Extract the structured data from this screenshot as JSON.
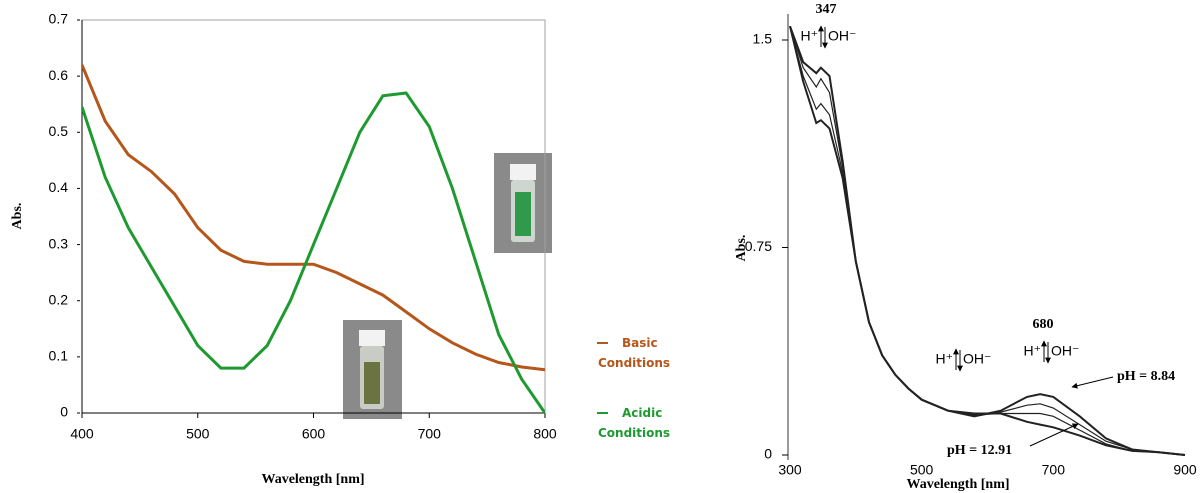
{
  "chart_data": [
    {
      "type": "line",
      "x_label": "Wavelength [nm]",
      "y_label": "Abs.",
      "x": [
        400,
        420,
        440,
        460,
        480,
        500,
        520,
        540,
        560,
        580,
        600,
        620,
        640,
        660,
        680,
        700,
        720,
        740,
        760,
        780,
        800
      ],
      "series": [
        {
          "name": "Basic Conditions",
          "color": "#b5561a",
          "values": [
            0.62,
            0.52,
            0.46,
            0.43,
            0.39,
            0.33,
            0.29,
            0.27,
            0.265,
            0.265,
            0.265,
            0.25,
            0.23,
            0.21,
            0.18,
            0.15,
            0.125,
            0.105,
            0.09,
            0.082,
            0.077
          ]
        },
        {
          "name": "Acidic Conditions",
          "color": "#1e9a30",
          "values": [
            0.545,
            0.42,
            0.33,
            0.26,
            0.19,
            0.12,
            0.08,
            0.08,
            0.12,
            0.2,
            0.3,
            0.4,
            0.5,
            0.565,
            0.57,
            0.51,
            0.4,
            0.27,
            0.14,
            0.06,
            0.0
          ]
        }
      ],
      "xlim": [
        400,
        800
      ],
      "xticks": [
        400,
        500,
        600,
        700,
        800
      ],
      "ylim": [
        0,
        0.7
      ],
      "yticks": [
        0,
        0.1,
        0.2,
        0.3,
        0.4,
        0.5,
        0.6,
        0.7
      ]
    },
    {
      "type": "line",
      "x_label": "Wavelength [nm]",
      "y_label": "Abs.",
      "x": [
        300,
        320,
        340,
        347,
        360,
        380,
        400,
        420,
        440,
        460,
        480,
        500,
        540,
        580,
        620,
        660,
        680,
        700,
        740,
        780,
        820,
        860,
        900
      ],
      "series": [
        {
          "color": "#222222",
          "values": [
            1.55,
            1.35,
            1.2,
            1.21,
            1.18,
            1.0,
            0.7,
            0.48,
            0.36,
            0.29,
            0.24,
            0.2,
            0.16,
            0.14,
            0.16,
            0.21,
            0.22,
            0.21,
            0.14,
            0.06,
            0.02,
            0.01,
            0.0
          ]
        },
        {
          "color": "#222222",
          "values": [
            1.55,
            1.37,
            1.25,
            1.27,
            1.23,
            1.02,
            0.7,
            0.48,
            0.36,
            0.29,
            0.24,
            0.2,
            0.16,
            0.14,
            0.155,
            0.18,
            0.185,
            0.17,
            0.11,
            0.05,
            0.02,
            0.01,
            0.0
          ]
        },
        {
          "color": "#222222",
          "values": [
            1.55,
            1.4,
            1.33,
            1.36,
            1.31,
            1.04,
            0.7,
            0.48,
            0.36,
            0.29,
            0.24,
            0.2,
            0.16,
            0.145,
            0.15,
            0.15,
            0.15,
            0.14,
            0.09,
            0.04,
            0.015,
            0.01,
            0.0
          ]
        },
        {
          "color": "#222222",
          "values": [
            1.55,
            1.42,
            1.38,
            1.4,
            1.37,
            1.06,
            0.7,
            0.48,
            0.36,
            0.29,
            0.24,
            0.2,
            0.16,
            0.15,
            0.15,
            0.12,
            0.11,
            0.1,
            0.07,
            0.035,
            0.015,
            0.01,
            0.0
          ]
        }
      ],
      "xlim": [
        300,
        900
      ],
      "xticks": [
        300,
        500,
        700,
        900
      ],
      "ylim": [
        0,
        1.5
      ],
      "yticks": [
        0,
        0.75,
        1.5
      ],
      "annotations": [
        "347",
        "680",
        "pH = 8.84",
        "pH = 12.91"
      ],
      "ion_labels": [
        "H⁺",
        "OH⁻"
      ]
    }
  ]
}
